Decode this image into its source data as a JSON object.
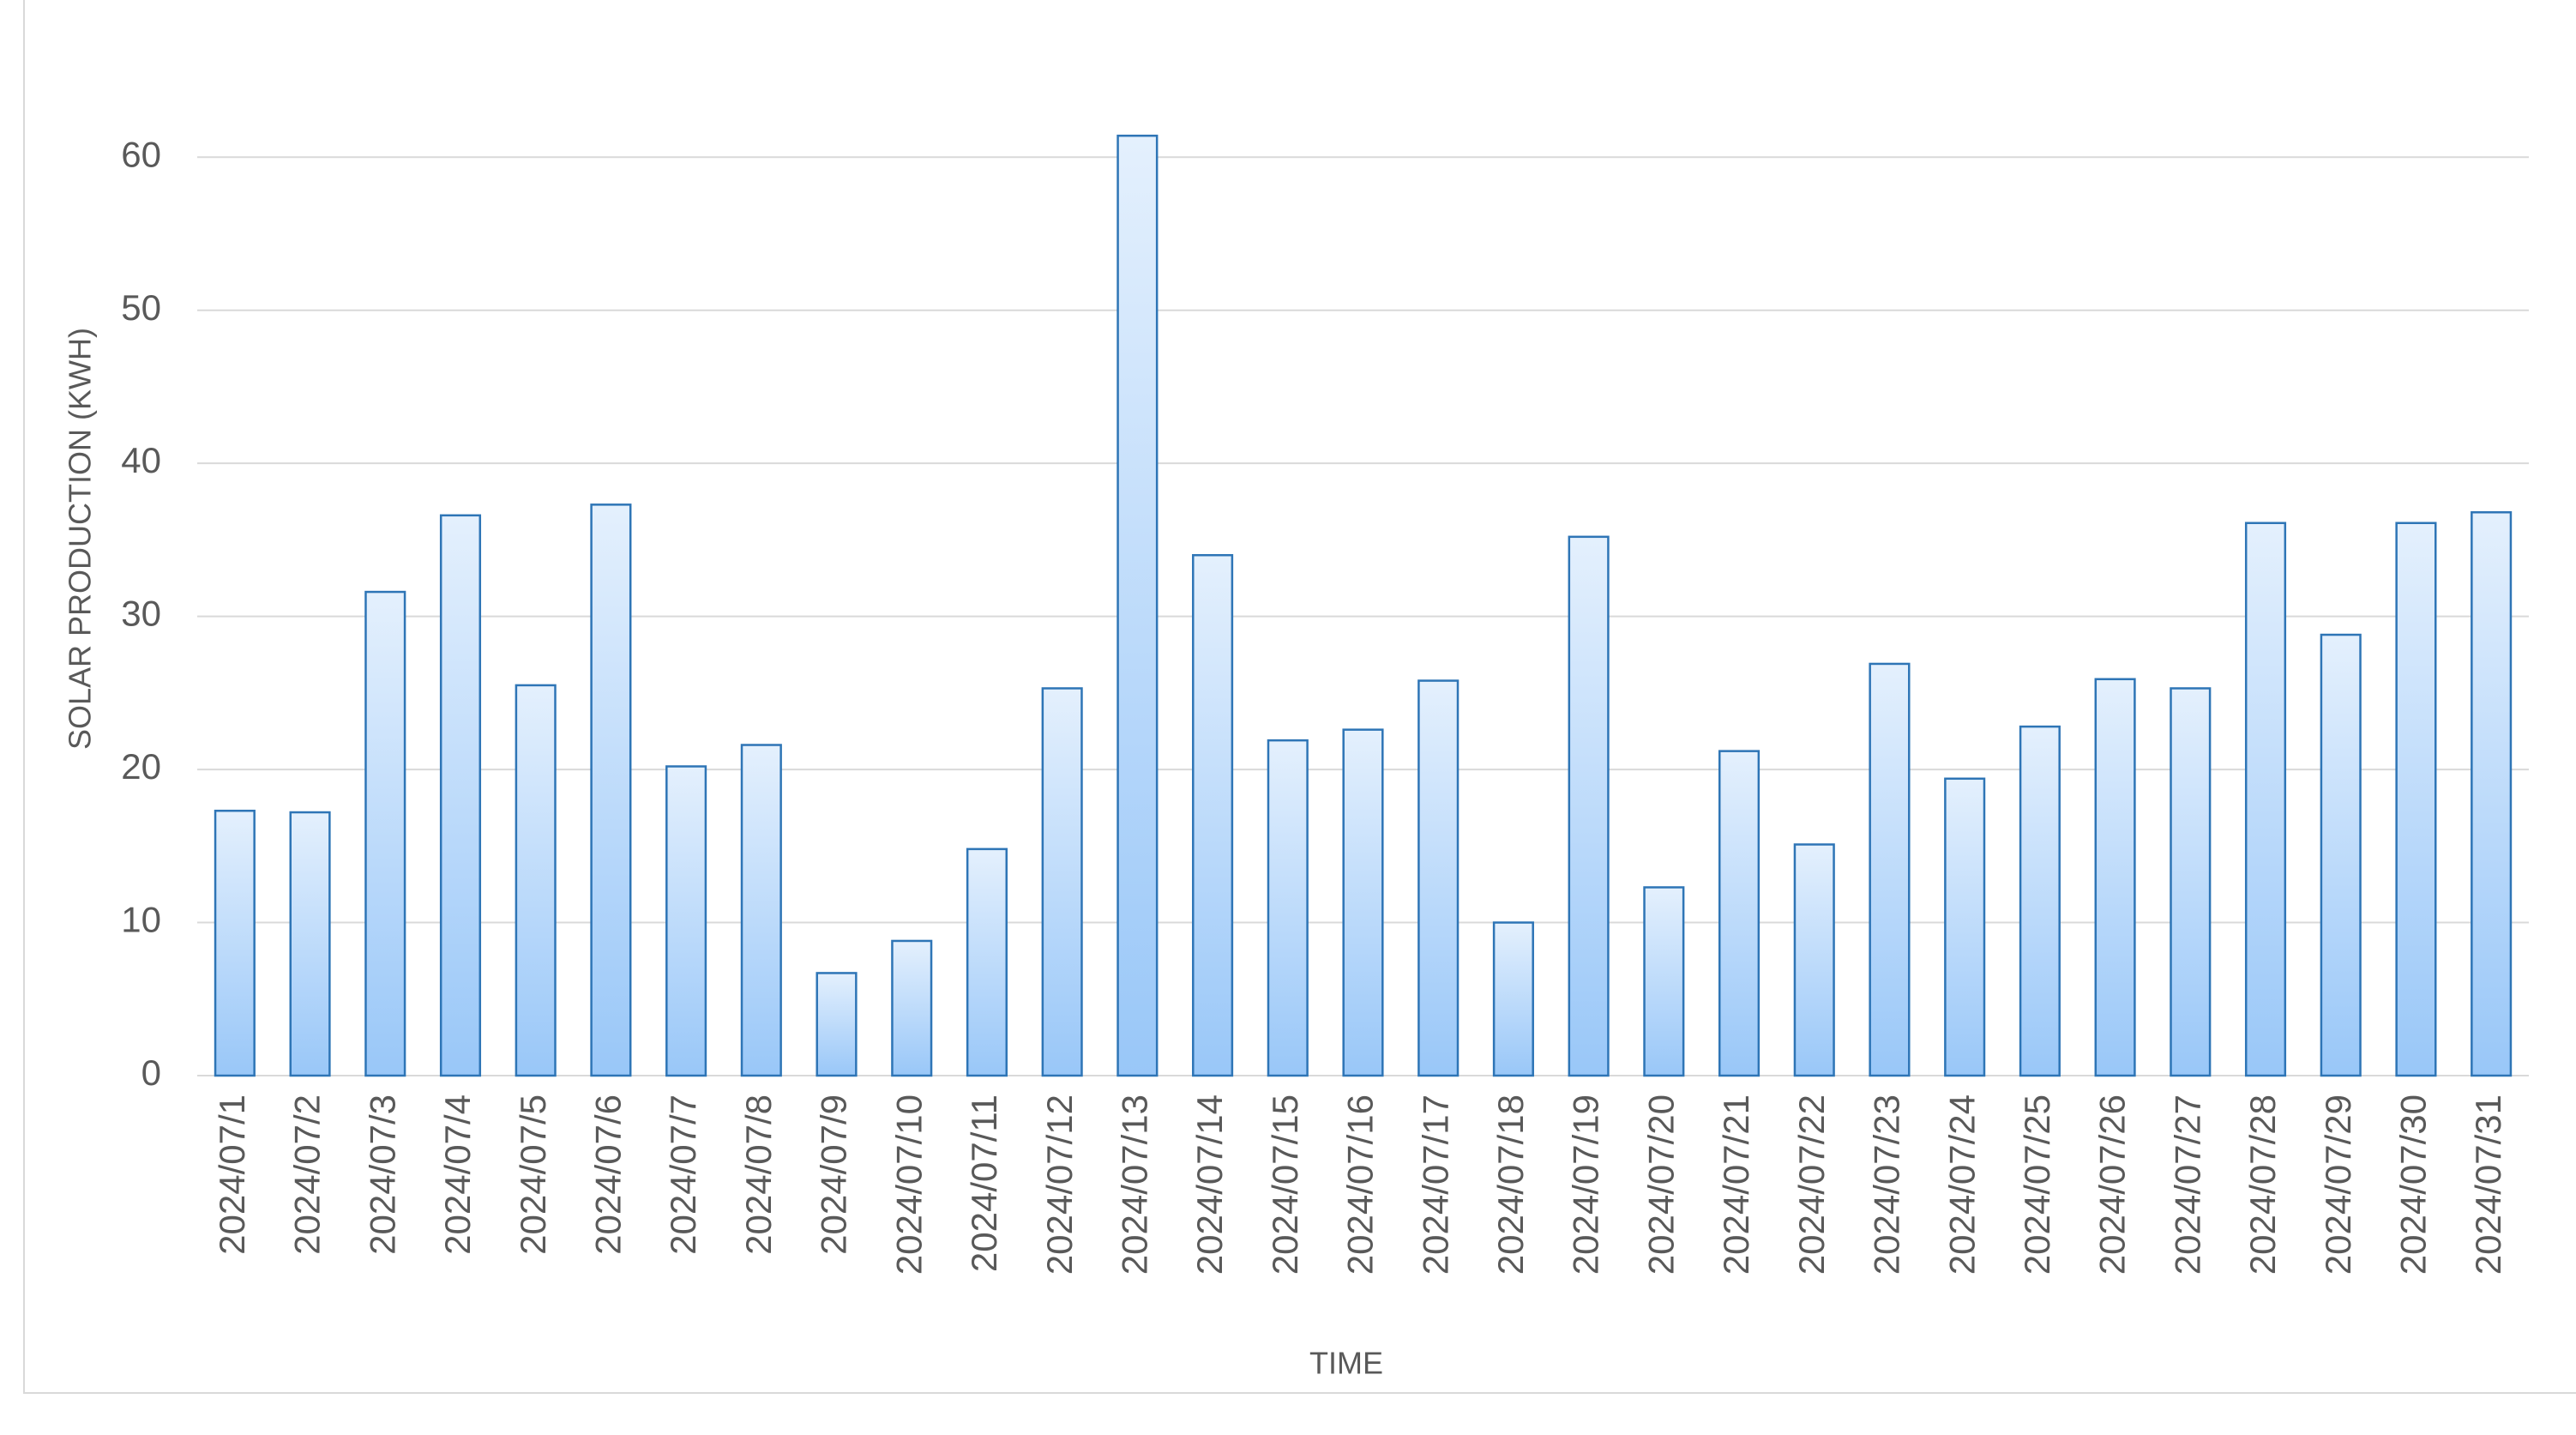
{
  "chart_data": {
    "type": "bar",
    "x_label": "TIME",
    "y_label": "SOLAR PRODUCTION (KWH)",
    "categories": [
      "2024/07/1",
      "2024/07/2",
      "2024/07/3",
      "2024/07/4",
      "2024/07/5",
      "2024/07/6",
      "2024/07/7",
      "2024/07/8",
      "2024/07/9",
      "2024/07/10",
      "2024/07/11",
      "2024/07/12",
      "2024/07/13",
      "2024/07/14",
      "2024/07/15",
      "2024/07/16",
      "2024/07/17",
      "2024/07/18",
      "2024/07/19",
      "2024/07/20",
      "2024/07/21",
      "2024/07/22",
      "2024/07/23",
      "2024/07/24",
      "2024/07/25",
      "2024/07/26",
      "2024/07/27",
      "2024/07/28",
      "2024/07/29",
      "2024/07/30",
      "2024/07/31"
    ],
    "values": [
      17.3,
      17.2,
      31.6,
      36.6,
      25.5,
      37.3,
      20.2,
      21.6,
      6.7,
      8.8,
      14.8,
      25.3,
      61.4,
      34.0,
      21.9,
      22.6,
      25.8,
      10.0,
      35.2,
      12.3,
      21.2,
      15.1,
      26.9,
      19.4,
      22.8,
      25.9,
      25.3,
      36.1,
      28.8,
      36.1,
      36.8
    ],
    "color": "#2e75b6",
    "ylim": [
      0,
      65
    ],
    "yticks": [
      0,
      10,
      20,
      30,
      40,
      50,
      60
    ],
    "grid": true
  }
}
